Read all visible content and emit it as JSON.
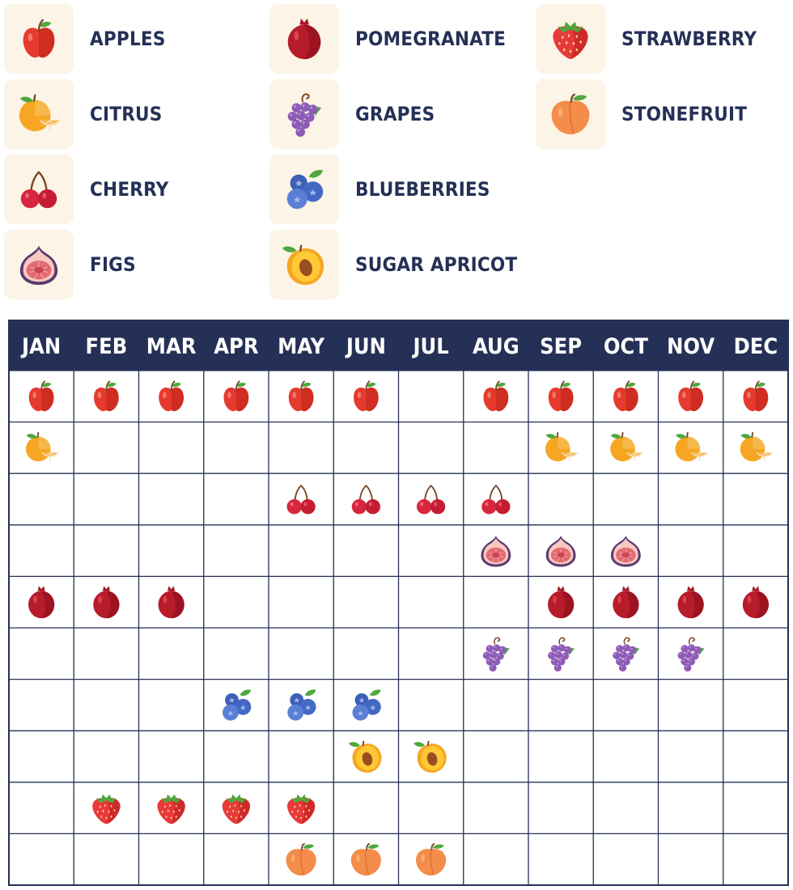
{
  "legend": [
    {
      "key": "apple",
      "label": "APPLES"
    },
    {
      "key": "citrus",
      "label": "CITRUS"
    },
    {
      "key": "cherry",
      "label": "CHERRY"
    },
    {
      "key": "fig",
      "label": "FIGS"
    },
    {
      "key": "pomegranate",
      "label": "POMEGRANATE"
    },
    {
      "key": "grapes",
      "label": "GRAPES"
    },
    {
      "key": "blueberry",
      "label": "BLUEBERRIES"
    },
    {
      "key": "apricot",
      "label": "SUGAR APRICOT"
    },
    {
      "key": "strawberry",
      "label": "STRAWBERRY"
    },
    {
      "key": "stonefruit",
      "label": "STONEFRUIT"
    }
  ],
  "months": [
    "JAN",
    "FEB",
    "MAR",
    "APR",
    "MAY",
    "JUN",
    "JUL",
    "AUG",
    "SEP",
    "OCT",
    "NOV",
    "DEC"
  ],
  "seasons": [
    {
      "key": "apple",
      "months": [
        1,
        1,
        1,
        1,
        1,
        1,
        0,
        1,
        1,
        1,
        1,
        1
      ]
    },
    {
      "key": "citrus",
      "months": [
        1,
        0,
        0,
        0,
        0,
        0,
        0,
        0,
        1,
        1,
        1,
        1
      ]
    },
    {
      "key": "cherry",
      "months": [
        0,
        0,
        0,
        0,
        1,
        1,
        1,
        1,
        0,
        0,
        0,
        0
      ]
    },
    {
      "key": "fig",
      "months": [
        0,
        0,
        0,
        0,
        0,
        0,
        0,
        1,
        1,
        1,
        0,
        0
      ]
    },
    {
      "key": "pomegranate",
      "months": [
        1,
        1,
        1,
        0,
        0,
        0,
        0,
        0,
        1,
        1,
        1,
        1
      ]
    },
    {
      "key": "grapes",
      "months": [
        0,
        0,
        0,
        0,
        0,
        0,
        0,
        1,
        1,
        1,
        1,
        0
      ]
    },
    {
      "key": "blueberry",
      "months": [
        0,
        0,
        0,
        1,
        1,
        1,
        0,
        0,
        0,
        0,
        0,
        0
      ]
    },
    {
      "key": "apricot",
      "months": [
        0,
        0,
        0,
        0,
        0,
        1,
        1,
        0,
        0,
        0,
        0,
        0
      ]
    },
    {
      "key": "strawberry",
      "months": [
        0,
        1,
        1,
        1,
        1,
        0,
        0,
        0,
        0,
        0,
        0,
        0
      ]
    },
    {
      "key": "stonefruit",
      "months": [
        0,
        0,
        0,
        0,
        1,
        1,
        1,
        0,
        0,
        0,
        0,
        0
      ]
    }
  ],
  "colors": {
    "header": "#253056",
    "grid": "#253056",
    "label": "#253056",
    "tile": "#fcf4e6"
  }
}
